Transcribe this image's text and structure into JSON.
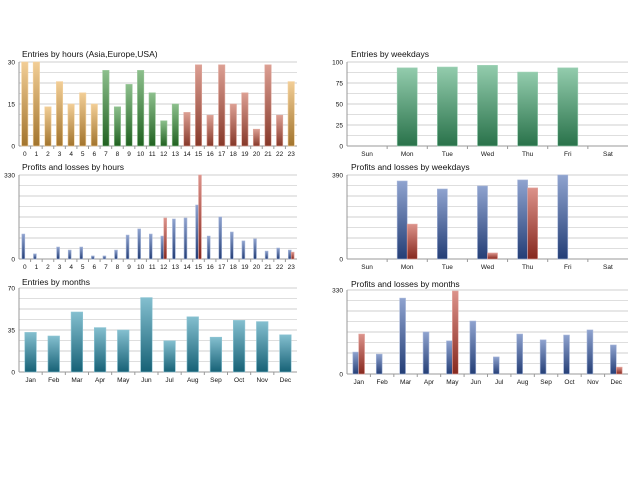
{
  "chart_data": [
    {
      "id": "entries-hours",
      "type": "bar",
      "title": "Entries by hours (Asia,Europe,USA)",
      "xlabel": "",
      "ylabel": "",
      "ylim": [
        0,
        30
      ],
      "yticks": [
        0,
        15,
        30
      ],
      "grid": true,
      "categories": [
        "0",
        "1",
        "2",
        "3",
        "4",
        "5",
        "6",
        "7",
        "8",
        "9",
        "10",
        "11",
        "12",
        "13",
        "14",
        "15",
        "16",
        "17",
        "18",
        "19",
        "20",
        "21",
        "22",
        "23"
      ],
      "values": [
        30,
        30,
        14,
        23,
        15,
        19,
        15,
        27,
        14,
        22,
        27,
        19,
        9,
        15,
        12,
        29,
        11,
        29,
        15,
        19,
        6,
        29,
        11,
        23
      ],
      "region_colors": [
        "#e8a640",
        "#e8a640",
        "#e8a640",
        "#e8a640",
        "#e8a640",
        "#e8a640",
        "#e8a640",
        "#2e8b2e",
        "#2e8b2e",
        "#2e8b2e",
        "#2e8b2e",
        "#2e8b2e",
        "#2e8b2e",
        "#2e8b2e",
        "#c0503a",
        "#c0503a",
        "#c0503a",
        "#c0503a",
        "#c0503a",
        "#c0503a",
        "#c0503a",
        "#c0503a",
        "#c0503a",
        "#e8a640"
      ]
    },
    {
      "id": "entries-weekdays",
      "type": "bar",
      "title": "Entries by weekdays",
      "xlabel": "",
      "ylabel": "",
      "ylim": [
        0,
        100
      ],
      "yticks": [
        0,
        25,
        50,
        75,
        100
      ],
      "grid": true,
      "categories": [
        "Sun",
        "Mon",
        "Tue",
        "Wed",
        "Thu",
        "Fri",
        "Sat"
      ],
      "values": [
        0,
        93,
        94,
        96,
        88,
        93,
        0
      ],
      "color": "#3aa36a"
    },
    {
      "id": "pl-hours",
      "type": "bar",
      "title": "Profits and losses by hours",
      "xlabel": "",
      "ylabel": "",
      "ylim": [
        0,
        330
      ],
      "yticks": [
        0,
        330
      ],
      "grid": true,
      "categories": [
        "0",
        "1",
        "2",
        "3",
        "4",
        "5",
        "6",
        "7",
        "8",
        "9",
        "10",
        "11",
        "12",
        "13",
        "14",
        "15",
        "16",
        "17",
        "18",
        "19",
        "20",
        "21",
        "22",
        "23"
      ],
      "series": [
        {
          "name": "Profits",
          "color": "#3458a8",
          "values": [
            98,
            20,
            0,
            47,
            35,
            47,
            12,
            12,
            35,
            94,
            118,
            98,
            90,
            157,
            161,
            212,
            90,
            165,
            106,
            71,
            79,
            31,
            43,
            35
          ]
        },
        {
          "name": "Losses",
          "color": "#c0392b",
          "values": [
            0,
            0,
            0,
            0,
            0,
            0,
            0,
            0,
            0,
            0,
            0,
            0,
            161,
            0,
            0,
            330,
            0,
            0,
            0,
            0,
            0,
            0,
            0,
            27
          ]
        }
      ]
    },
    {
      "id": "pl-weekdays",
      "type": "bar",
      "title": "Profits and losses by weekdays",
      "xlabel": "",
      "ylabel": "",
      "ylim": [
        0,
        390
      ],
      "yticks": [
        0,
        390
      ],
      "grid": true,
      "categories": [
        "Sun",
        "Mon",
        "Tue",
        "Wed",
        "Thu",
        "Fri",
        "Sat"
      ],
      "series": [
        {
          "name": "Profits",
          "color": "#3458a8",
          "values": [
            0,
            362,
            325,
            339,
            367,
            390,
            0
          ]
        },
        {
          "name": "Losses",
          "color": "#c0392b",
          "values": [
            0,
            162,
            0,
            28,
            330,
            0,
            0
          ]
        }
      ]
    },
    {
      "id": "entries-months",
      "type": "bar",
      "title": "Entries by months",
      "xlabel": "",
      "ylabel": "",
      "ylim": [
        0,
        70
      ],
      "yticks": [
        0,
        35,
        70
      ],
      "grid": true,
      "categories": [
        "Jan",
        "Feb",
        "Mar",
        "Apr",
        "May",
        "Jun",
        "Jul",
        "Aug",
        "Sep",
        "Oct",
        "Nov",
        "Dec"
      ],
      "values": [
        33,
        30,
        50,
        37,
        35,
        62,
        26,
        46,
        29,
        43,
        42,
        31
      ],
      "color": "#1f8aa8"
    },
    {
      "id": "pl-months",
      "type": "bar",
      "title": "Profits and losses by months",
      "xlabel": "",
      "ylabel": "",
      "ylim": [
        0,
        330
      ],
      "yticks": [
        0,
        330
      ],
      "grid": true,
      "categories": [
        "Jan",
        "Feb",
        "Mar",
        "Apr",
        "May",
        "Jun",
        "Jul",
        "Aug",
        "Sep",
        "Oct",
        "Nov",
        "Dec"
      ],
      "series": [
        {
          "name": "Profits",
          "color": "#3458a8",
          "values": [
            86,
            78,
            298,
            165,
            130,
            208,
            67,
            157,
            134,
            153,
            173,
            114
          ]
        },
        {
          "name": "Losses",
          "color": "#c0392b",
          "values": [
            157,
            0,
            0,
            0,
            326,
            0,
            0,
            0,
            0,
            0,
            0,
            27
          ]
        }
      ]
    }
  ]
}
